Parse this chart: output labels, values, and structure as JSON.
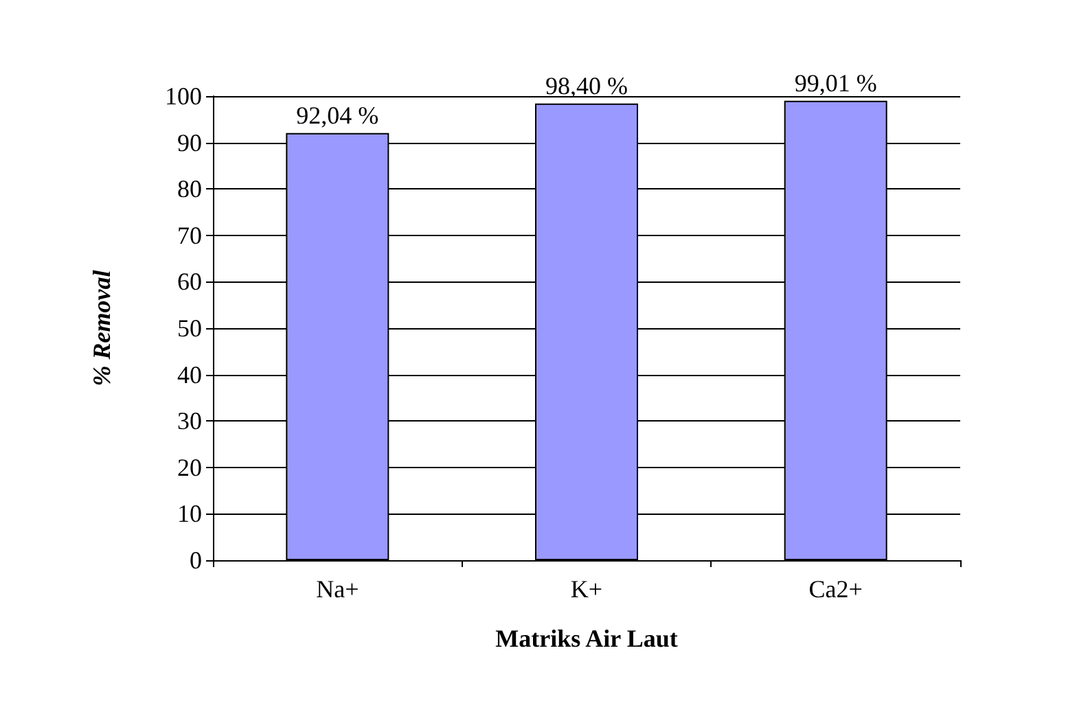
{
  "chart_data": {
    "type": "bar",
    "xlabel": "Matriks Air Laut",
    "ylabel": "% Removal",
    "categories": [
      "Na+",
      "K+",
      "Ca2+"
    ],
    "series": [
      {
        "color": "#9999ff",
        "values": [
          92.04,
          98.4,
          99.01
        ],
        "value_labels": [
          "92,04 %",
          "98,40 %",
          "99,01 %"
        ]
      }
    ],
    "ylim": [
      0,
      100
    ],
    "yticks": [
      0,
      10,
      20,
      30,
      40,
      50,
      60,
      70,
      80,
      90,
      100
    ],
    "grid": "y"
  }
}
